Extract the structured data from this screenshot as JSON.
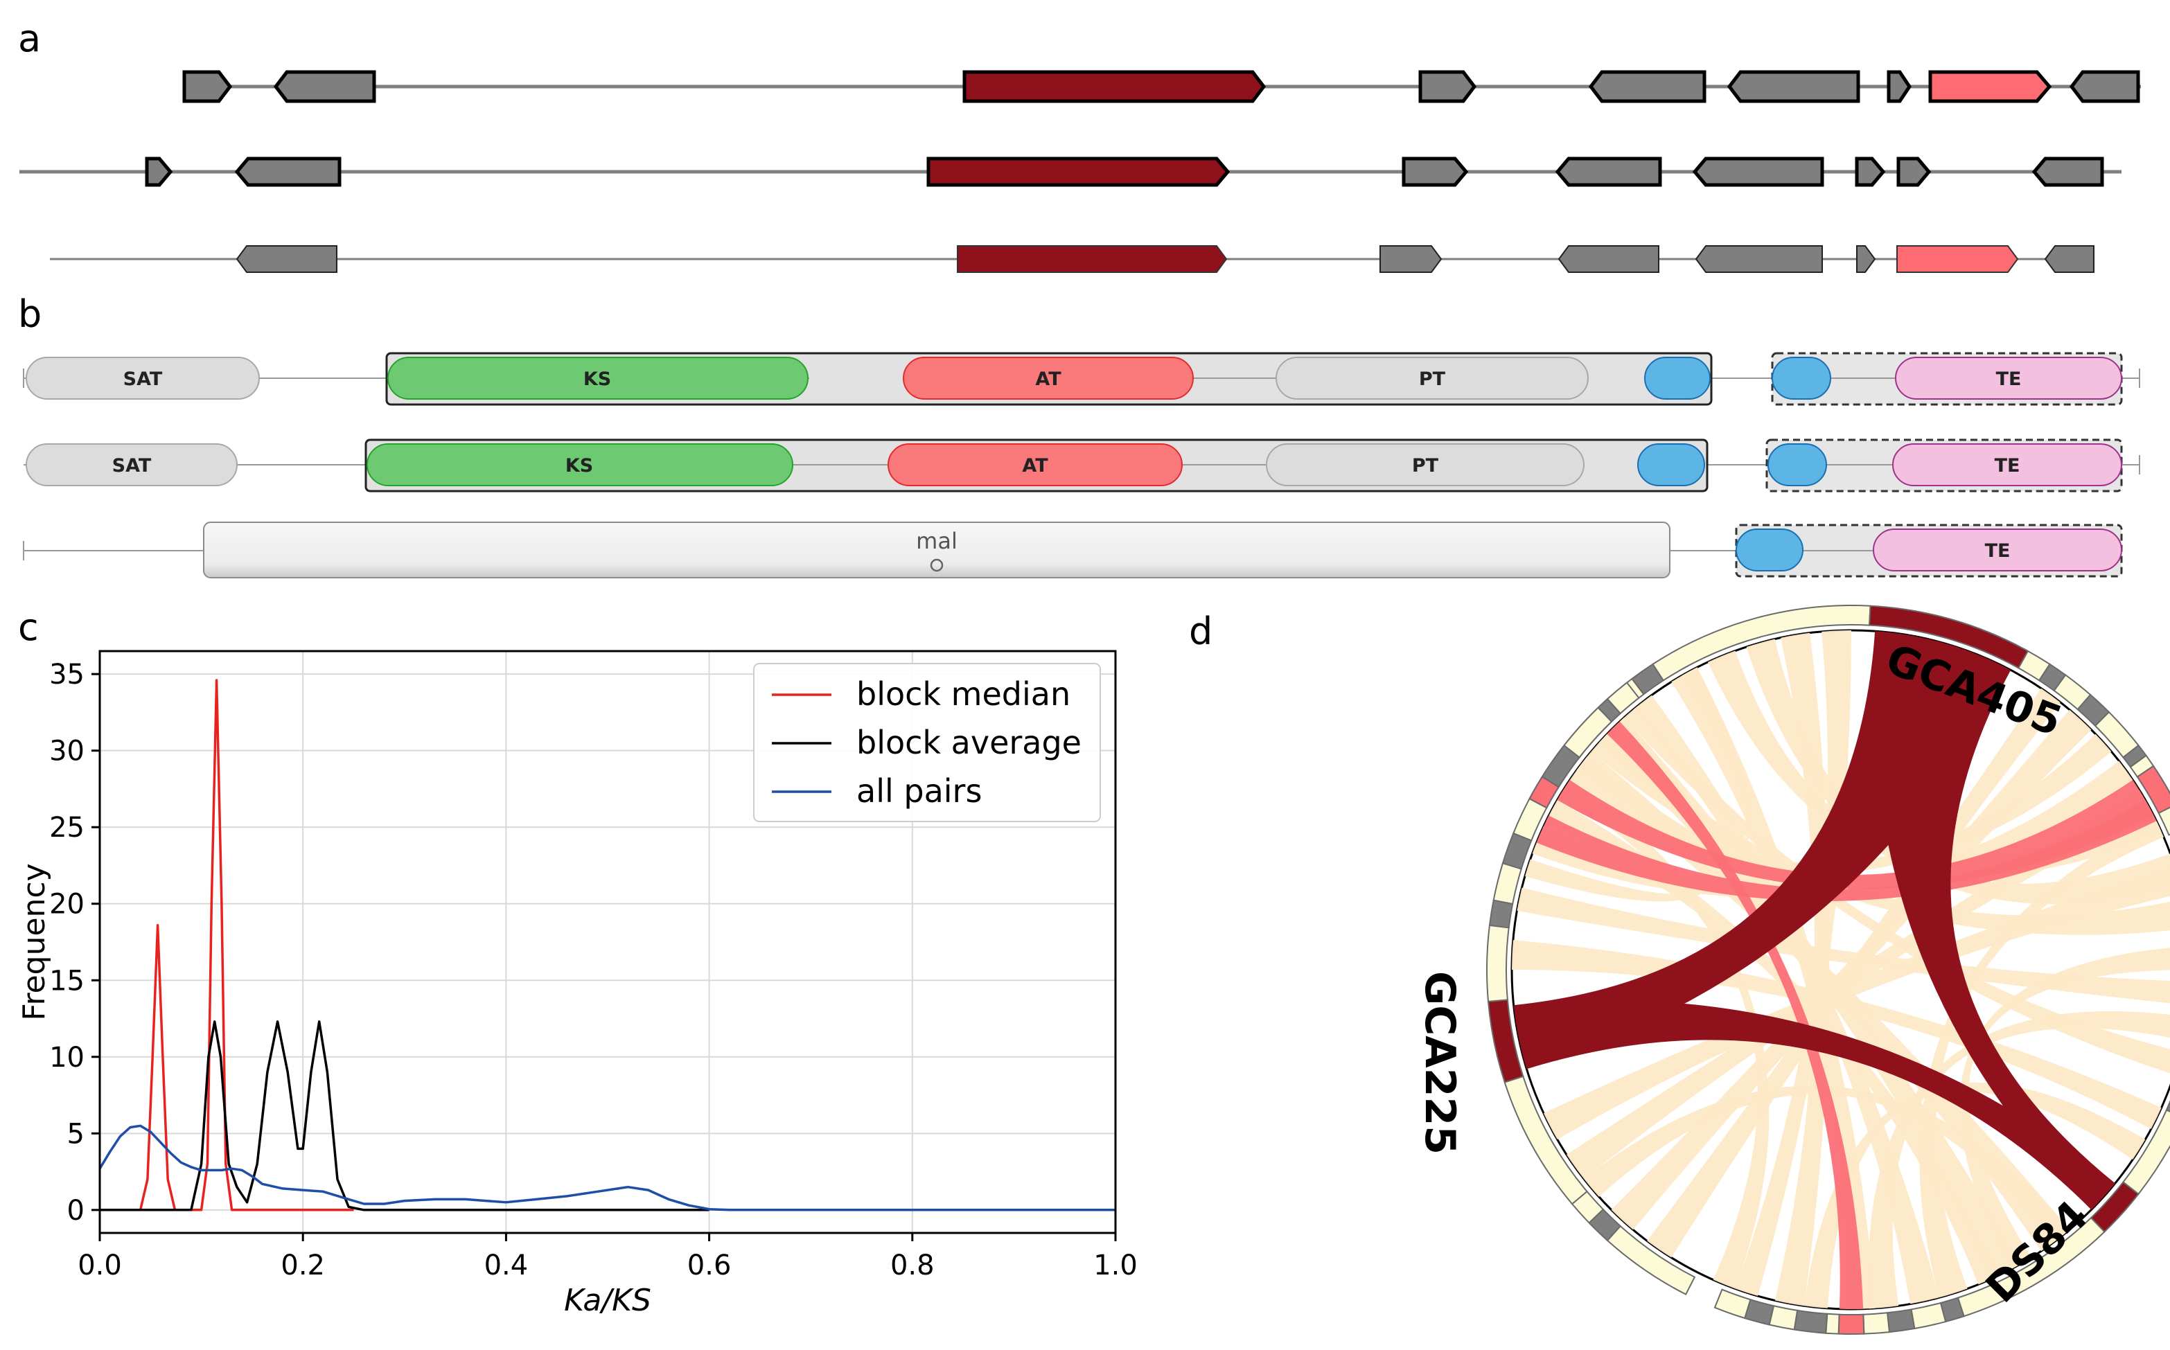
{
  "panels": {
    "a": {
      "letter": "a"
    },
    "b": {
      "letter": "b",
      "domain_labels": {
        "sat": "SAT",
        "ks": "KS",
        "at": "AT",
        "pt": "PT",
        "te": "TE",
        "mal": "mal"
      }
    },
    "c": {
      "letter": "c"
    },
    "d": {
      "letter": "d",
      "genomes": [
        "GCA405",
        "GCA225",
        "DS84"
      ]
    }
  },
  "colors": {
    "gene_gray": "#7f7f7f",
    "gene_core": "#8f111b",
    "gene_pink": "#ff6b72",
    "ks": "#6dca72",
    "at": "#fa7a7c",
    "pt_sat": "#dcdcdc",
    "acp": "#5db5e5",
    "te": "#f3c0e0",
    "ribbon_light": "#fde9c7",
    "ribbon_pink": "#fb6f77",
    "ribbon_dark": "#8f111b",
    "ring_light": "#fdfbd7"
  },
  "chart_data": {
    "type": "line",
    "xlabel": "Ka/KS",
    "ylabel": "Frequency",
    "xlim": [
      0.0,
      1.0
    ],
    "ylim": [
      -1.5,
      36.5
    ],
    "xticks": [
      "0.0",
      "0.2",
      "0.4",
      "0.6",
      "0.8",
      "1.0"
    ],
    "yticks": [
      "0",
      "5",
      "10",
      "15",
      "20",
      "25",
      "30",
      "35"
    ],
    "grid": true,
    "legend_position": "top-right",
    "series": [
      {
        "name": "block median",
        "color": "#e8231f",
        "points": [
          [
            0.0,
            0
          ],
          [
            0.04,
            0
          ],
          [
            0.047,
            2
          ],
          [
            0.052,
            10
          ],
          [
            0.057,
            18.6
          ],
          [
            0.062,
            10
          ],
          [
            0.067,
            2
          ],
          [
            0.074,
            0
          ],
          [
            0.1,
            0
          ],
          [
            0.106,
            3
          ],
          [
            0.11,
            20
          ],
          [
            0.115,
            34.6
          ],
          [
            0.12,
            20
          ],
          [
            0.124,
            3
          ],
          [
            0.13,
            0
          ],
          [
            0.25,
            0
          ]
        ]
      },
      {
        "name": "block average",
        "color": "#000000",
        "points": [
          [
            0.0,
            0
          ],
          [
            0.09,
            0
          ],
          [
            0.1,
            3
          ],
          [
            0.107,
            10
          ],
          [
            0.113,
            12.3
          ],
          [
            0.119,
            10
          ],
          [
            0.127,
            3
          ],
          [
            0.135,
            1.5
          ],
          [
            0.145,
            0.5
          ],
          [
            0.155,
            3
          ],
          [
            0.165,
            9
          ],
          [
            0.175,
            12.3
          ],
          [
            0.185,
            9
          ],
          [
            0.195,
            4
          ],
          [
            0.2,
            4
          ],
          [
            0.208,
            9
          ],
          [
            0.216,
            12.3
          ],
          [
            0.224,
            9
          ],
          [
            0.234,
            2
          ],
          [
            0.245,
            0.2
          ],
          [
            0.26,
            0
          ],
          [
            0.6,
            0
          ]
        ]
      },
      {
        "name": "all pairs",
        "color": "#1f4ea8",
        "points": [
          [
            0.0,
            2.7
          ],
          [
            0.01,
            3.8
          ],
          [
            0.02,
            4.8
          ],
          [
            0.03,
            5.4
          ],
          [
            0.04,
            5.5
          ],
          [
            0.05,
            5.1
          ],
          [
            0.06,
            4.4
          ],
          [
            0.07,
            3.7
          ],
          [
            0.08,
            3.1
          ],
          [
            0.09,
            2.8
          ],
          [
            0.1,
            2.6
          ],
          [
            0.11,
            2.6
          ],
          [
            0.12,
            2.6
          ],
          [
            0.13,
            2.7
          ],
          [
            0.14,
            2.6
          ],
          [
            0.15,
            2.2
          ],
          [
            0.16,
            1.7
          ],
          [
            0.18,
            1.4
          ],
          [
            0.2,
            1.3
          ],
          [
            0.22,
            1.2
          ],
          [
            0.24,
            0.8
          ],
          [
            0.26,
            0.4
          ],
          [
            0.28,
            0.4
          ],
          [
            0.3,
            0.6
          ],
          [
            0.33,
            0.7
          ],
          [
            0.36,
            0.7
          ],
          [
            0.38,
            0.6
          ],
          [
            0.4,
            0.5
          ],
          [
            0.43,
            0.7
          ],
          [
            0.46,
            0.9
          ],
          [
            0.49,
            1.2
          ],
          [
            0.52,
            1.5
          ],
          [
            0.54,
            1.3
          ],
          [
            0.56,
            0.7
          ],
          [
            0.58,
            0.3
          ],
          [
            0.6,
            0.05
          ],
          [
            0.62,
            0
          ],
          [
            0.8,
            0
          ],
          [
            1.0,
            0
          ]
        ]
      }
    ]
  }
}
